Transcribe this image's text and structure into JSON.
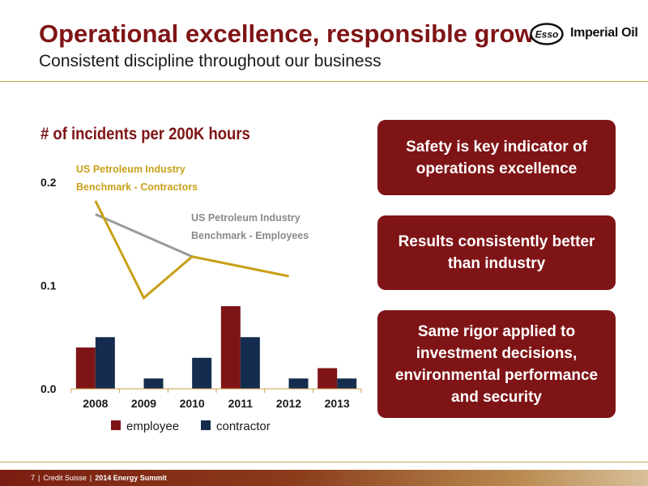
{
  "header": {
    "title": "Operational excellence, responsible growth",
    "subtitle": "Consistent discipline throughout our business",
    "logo_mark": "Esso",
    "logo_text": "Imperial Oil"
  },
  "chart_title": "# of incidents per 200K hours",
  "chart_data": {
    "type": "bar",
    "categories": [
      "2008",
      "2009",
      "2010",
      "2011",
      "2012",
      "2013"
    ],
    "ylim": [
      0,
      0.2
    ],
    "y_ticks": [
      "0.0",
      "0.1",
      "0.2"
    ],
    "grid": false,
    "legend": "bottom",
    "series": [
      {
        "name": "employee",
        "color": "#7f1416",
        "values": [
          0.04,
          0.0,
          0.0,
          0.08,
          0.0,
          0.02
        ]
      },
      {
        "name": "contractor",
        "color": "#142c4d",
        "values": [
          0.05,
          0.01,
          0.03,
          0.05,
          0.01,
          0.01
        ]
      }
    ],
    "lines": [
      {
        "label_line1": "US Petroleum Industry",
        "label_line2": "Benchmark - Contractors",
        "color": "#c9a01a",
        "points": [
          [
            "2008",
            0.182
          ],
          [
            "2009",
            0.088
          ],
          [
            "2010",
            0.128
          ],
          [
            "2012",
            0.109
          ]
        ]
      },
      {
        "label_line1": "US Petroleum Industry",
        "label_line2": "Benchmark - Employees",
        "color": "#9a9a9a",
        "points": [
          [
            "2008",
            0.169
          ],
          [
            "2010",
            0.128
          ]
        ]
      }
    ]
  },
  "callouts": [
    "Safety is key indicator of operations excellence",
    "Results consistently better than industry",
    "Same rigor applied to investment decisions, environmental performance and security"
  ],
  "footer": {
    "page": "7",
    "company": "Credit Suisse",
    "event": "2014 Energy Summit"
  }
}
